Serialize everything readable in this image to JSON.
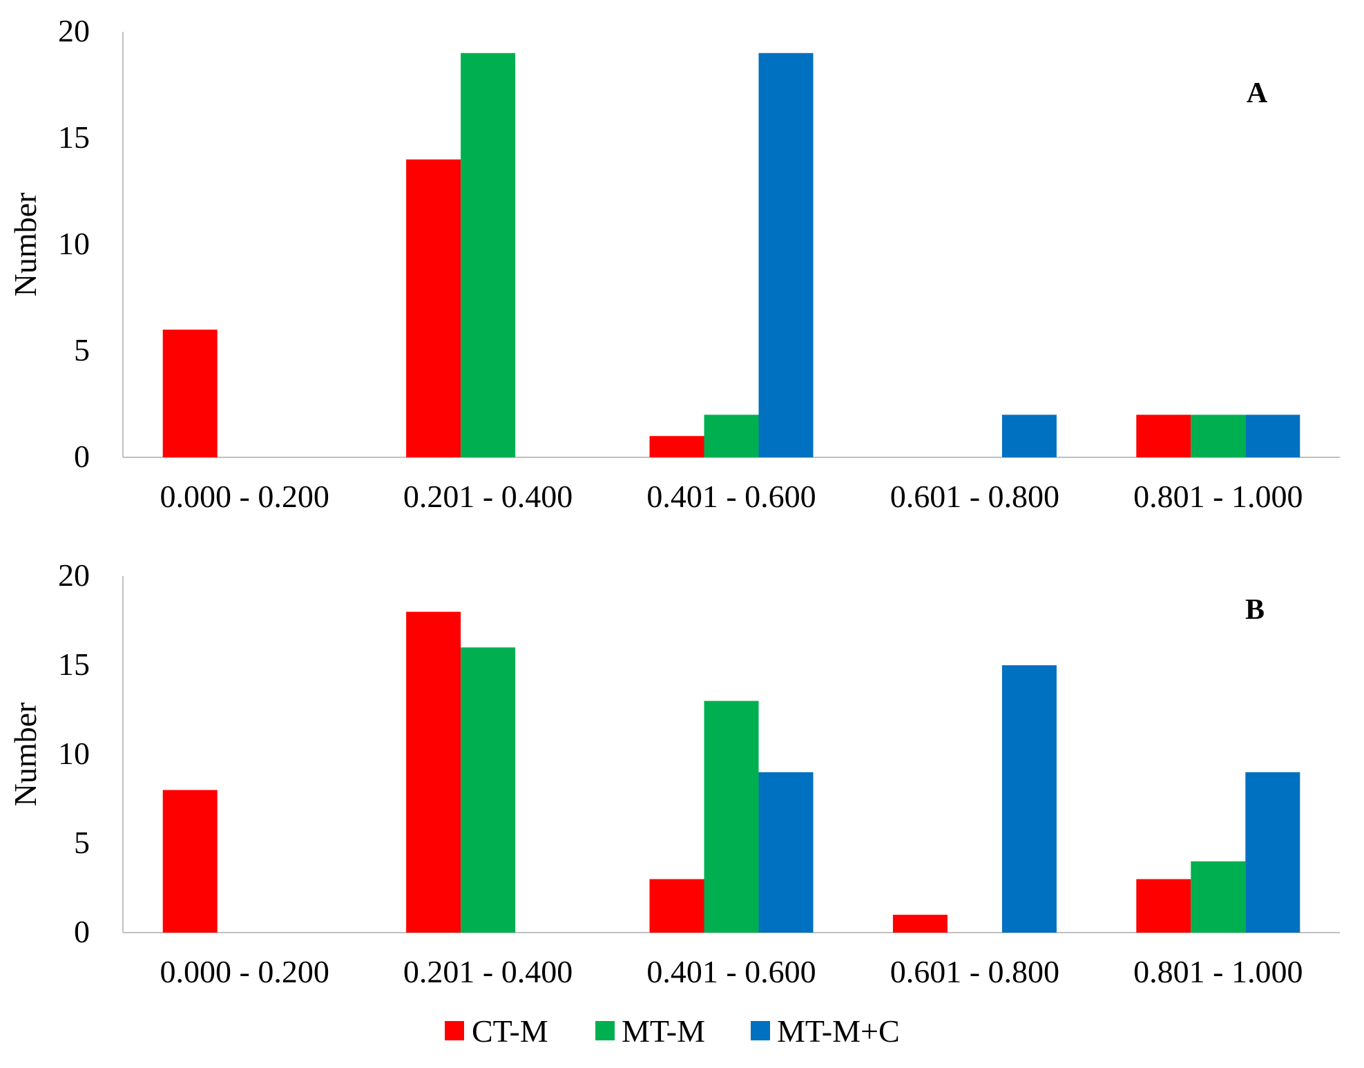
{
  "chart_data": [
    {
      "type": "bar",
      "panel_label": "A",
      "categories": [
        "0.000 - 0.200",
        "0.201 - 0.400",
        "0.401 - 0.600",
        "0.601 - 0.800",
        "0.801 - 1.000"
      ],
      "series": [
        {
          "name": "CT-M",
          "color": "#FF0000",
          "values": [
            6,
            14,
            1,
            0,
            2
          ]
        },
        {
          "name": "MT-M",
          "color": "#00B050",
          "values": [
            0,
            19,
            2,
            0,
            2
          ]
        },
        {
          "name": "MT-M+C",
          "color": "#0070C0",
          "values": [
            0,
            0,
            19,
            2,
            2
          ]
        }
      ],
      "ylabel": "Number",
      "ylim": [
        0,
        20
      ],
      "yticks": [
        0,
        5,
        10,
        15,
        20
      ],
      "grid": false
    },
    {
      "type": "bar",
      "panel_label": "B",
      "categories": [
        "0.000 - 0.200",
        "0.201 - 0.400",
        "0.401 - 0.600",
        "0.601 - 0.800",
        "0.801 - 1.000"
      ],
      "series": [
        {
          "name": "CT-M",
          "color": "#FF0000",
          "values": [
            8,
            18,
            3,
            1,
            3
          ]
        },
        {
          "name": "MT-M",
          "color": "#00B050",
          "values": [
            0,
            16,
            13,
            0,
            4
          ]
        },
        {
          "name": "MT-M+C",
          "color": "#0070C0",
          "values": [
            0,
            0,
            9,
            15,
            9
          ]
        }
      ],
      "ylabel": "Number",
      "ylim": [
        0,
        20
      ],
      "yticks": [
        0,
        5,
        10,
        15,
        20
      ],
      "grid": false
    }
  ],
  "legend": {
    "placement": "bottom-center",
    "items": [
      {
        "label": "CT-M",
        "color": "#FF0000"
      },
      {
        "label": "MT-M",
        "color": "#00B050"
      },
      {
        "label": "MT-M+C",
        "color": "#0070C0"
      }
    ]
  }
}
